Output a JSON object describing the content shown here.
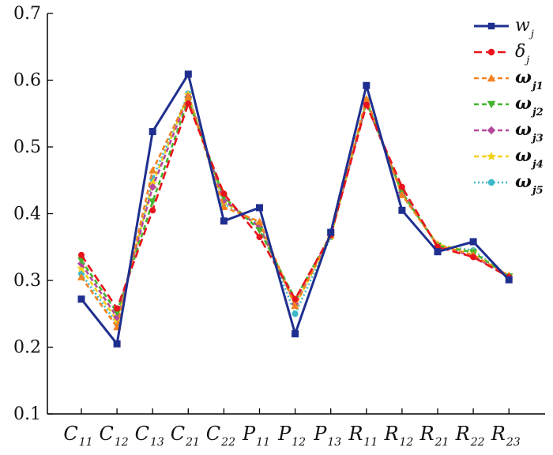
{
  "chart_data": {
    "type": "line",
    "categories": [
      {
        "main": "C",
        "sub": "11"
      },
      {
        "main": "C",
        "sub": "12"
      },
      {
        "main": "C",
        "sub": "13"
      },
      {
        "main": "C",
        "sub": "21"
      },
      {
        "main": "C",
        "sub": "22"
      },
      {
        "main": "P",
        "sub": "11"
      },
      {
        "main": "P",
        "sub": "12"
      },
      {
        "main": "P",
        "sub": "13"
      },
      {
        "main": "R",
        "sub": "11"
      },
      {
        "main": "R",
        "sub": "12"
      },
      {
        "main": "R",
        "sub": "21"
      },
      {
        "main": "R",
        "sub": "22"
      },
      {
        "main": "R",
        "sub": "23"
      }
    ],
    "ylim": [
      0.1,
      0.7
    ],
    "yticks": [
      "0.1",
      "0.2",
      "0.3",
      "0.4",
      "0.5",
      "0.6",
      "0.7"
    ],
    "legend_position": "top-right",
    "grid": false,
    "series": [
      {
        "name": "w",
        "sub": "j",
        "color": "#1f2f8f",
        "dash": "",
        "marker": "square",
        "values": [
          0.272,
          0.205,
          0.523,
          0.609,
          0.389,
          0.409,
          0.22,
          0.372,
          0.592,
          0.405,
          0.343,
          0.358,
          0.301
        ]
      },
      {
        "name": "δ",
        "sub": "j",
        "color": "#e8141c",
        "dash": "10,5",
        "marker": "circle",
        "values": [
          0.338,
          0.258,
          0.405,
          0.565,
          0.43,
          0.365,
          0.272,
          0.368,
          0.563,
          0.44,
          0.35,
          0.335,
          0.305
        ]
      },
      {
        "name": "ω",
        "sub": "j1",
        "color": "#f5821f",
        "dash": "6,4",
        "marker": "triangle-up",
        "values": [
          0.305,
          0.23,
          0.465,
          0.575,
          0.41,
          0.388,
          0.262,
          0.368,
          0.572,
          0.428,
          0.353,
          0.338,
          0.307
        ]
      },
      {
        "name": "ω",
        "sub": "j2",
        "color": "#45b531",
        "dash": "6,4",
        "marker": "triangle-down",
        "values": [
          0.33,
          0.252,
          0.418,
          0.57,
          0.425,
          0.375,
          0.272,
          0.368,
          0.568,
          0.432,
          0.352,
          0.342,
          0.306
        ]
      },
      {
        "name": "ω",
        "sub": "j3",
        "color": "#b4489c",
        "dash": "6,4",
        "marker": "diamond",
        "values": [
          0.325,
          0.245,
          0.44,
          0.575,
          0.42,
          0.38,
          0.265,
          0.368,
          0.565,
          0.432,
          0.352,
          0.336,
          0.306
        ]
      },
      {
        "name": "ω",
        "sub": "j4",
        "color": "#f2d21b",
        "dash": "6,4",
        "marker": "star",
        "values": [
          0.318,
          0.24,
          0.445,
          0.578,
          0.418,
          0.382,
          0.262,
          0.366,
          0.568,
          0.43,
          0.354,
          0.342,
          0.307
        ]
      },
      {
        "name": "ω",
        "sub": "j5",
        "color": "#3cb9c9",
        "dash": "2,3",
        "marker": "circle",
        "values": [
          0.31,
          0.235,
          0.452,
          0.58,
          0.415,
          0.385,
          0.25,
          0.365,
          0.57,
          0.428,
          0.353,
          0.345,
          0.305
        ]
      }
    ]
  }
}
